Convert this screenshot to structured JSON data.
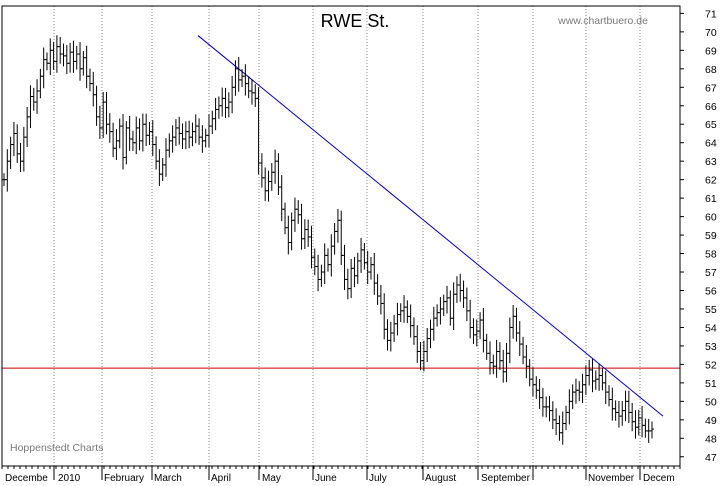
{
  "chart_data": {
    "type": "line",
    "title": "RWE St.",
    "source_text": "www.chartbuero.de",
    "credit_text": "Hoppenstedt Charts",
    "ylim": [
      46.5,
      71.4
    ],
    "y_ticks": [
      47,
      48,
      49,
      50,
      51,
      52,
      53,
      54,
      55,
      56,
      57,
      58,
      59,
      60,
      61,
      62,
      63,
      64,
      65,
      66,
      67,
      68,
      69,
      70,
      71
    ],
    "x_tick_labels": [
      "Decembe",
      "2010",
      "February",
      "March",
      "April",
      "May",
      "June",
      "July",
      "August",
      "September",
      "November",
      "Decem"
    ],
    "grid": "vertical dotted at month boundaries",
    "colors": {
      "price": "#000000",
      "trendline": "#0000cc",
      "support": "#cc0000",
      "grid": "#888888"
    },
    "series": [
      {
        "values": [
          62.0,
          63.0,
          63.9,
          64.5,
          63.4,
          63.0,
          64.3,
          65.4,
          66.5,
          66.2,
          66.8,
          67.6,
          68.5,
          68.3,
          69.0,
          68.4,
          69.2,
          68.8,
          68.7,
          68.3,
          68.9,
          68.4,
          68.8,
          68.0,
          68.6,
          67.6,
          67.2,
          66.6,
          65.4,
          64.8,
          66.2,
          65.0,
          64.6,
          63.7,
          64.1,
          64.9,
          63.2,
          64.8,
          64.2,
          64.0,
          64.8,
          64.1,
          65.0,
          64.4,
          64.6,
          63.9,
          63.0,
          62.3,
          62.8,
          63.6,
          64.1,
          64.3,
          64.8,
          64.5,
          64.2,
          64.6,
          64.3,
          64.6,
          64.9,
          64.3,
          64.1,
          64.4,
          64.9,
          65.3,
          65.8,
          66.0,
          66.4,
          65.9,
          66.2,
          67.0,
          68.0,
          67.4,
          67.6,
          67.2,
          66.8,
          66.7,
          66.4,
          62.9,
          62.1,
          61.4,
          61.9,
          62.4,
          63.0,
          61.6,
          60.4,
          59.4,
          58.6,
          59.8,
          60.4,
          60.1,
          58.8,
          59.3,
          58.9,
          57.8,
          57.3,
          56.6,
          57.0,
          57.9,
          57.4,
          58.4,
          59.2,
          59.8,
          57.9,
          56.6,
          56.1,
          57.2,
          56.8,
          57.6,
          58.2,
          57.5,
          57.0,
          57.4,
          56.4,
          55.7,
          55.3,
          53.9,
          53.3,
          53.7,
          54.2,
          54.7,
          54.9,
          55.1,
          54.6,
          54.1,
          53.5,
          52.7,
          52.2,
          52.7,
          53.4,
          53.9,
          54.5,
          54.8,
          55.0,
          55.4,
          55.6,
          54.5,
          55.8,
          56.3,
          56.0,
          55.6,
          54.9,
          54.0,
          53.6,
          53.8,
          54.4,
          53.3,
          52.6,
          52.1,
          51.9,
          52.7,
          52.2,
          51.6,
          52.6,
          54.0,
          54.6,
          53.7,
          53.1,
          52.4,
          51.9,
          51.2,
          50.9,
          50.6,
          50.2,
          49.7,
          49.7,
          49.5,
          49.0,
          48.8,
          48.3,
          48.8,
          49.4,
          50.0,
          50.5,
          50.6,
          50.5,
          50.9,
          51.4,
          51.7,
          51.1,
          51.2,
          51.4,
          51.0,
          50.5,
          50.1,
          49.6,
          49.4,
          49.2,
          49.5,
          50.0,
          49.4,
          48.9,
          48.6,
          49.1,
          48.7,
          48.4,
          48.4,
          48.5
        ]
      }
    ]
  }
}
